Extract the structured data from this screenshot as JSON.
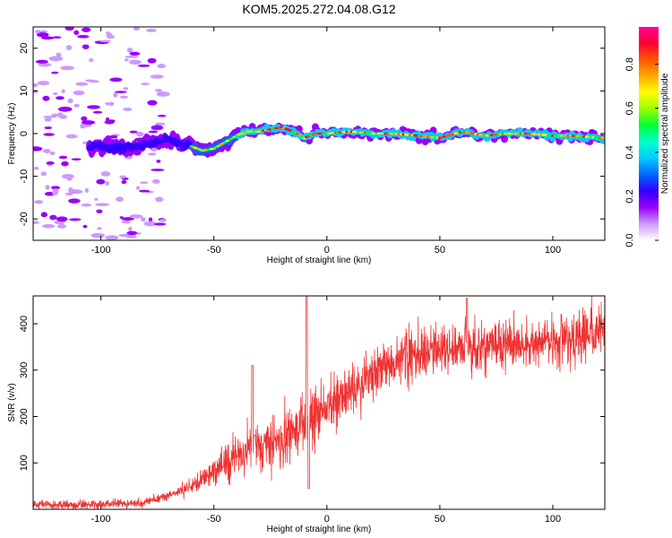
{
  "title": "KOM5.2025.272.04.08.G12",
  "chart_data": [
    {
      "type": "heatmap",
      "xlabel": "Height of straight line (km)",
      "ylabel": "Frequency (Hz)",
      "xlim": [
        -130,
        123
      ],
      "ylim": [
        -25,
        25
      ],
      "xticks": [
        -100,
        -50,
        0,
        50,
        100
      ],
      "yticks": [
        -20,
        -10,
        0,
        10,
        20
      ],
      "colorbar": {
        "label": "Normalized spectral amplitude",
        "range": [
          0,
          0.97
        ],
        "ticks": [
          0.0,
          0.2,
          0.4,
          0.6,
          0.8
        ],
        "colors": [
          "#ffffff",
          "#cc99ff",
          "#9900ff",
          "#3300ff",
          "#0066ff",
          "#00ccff",
          "#00ffcc",
          "#00ff33",
          "#99ff00",
          "#ffff00",
          "#ffaa00",
          "#ff5500",
          "#ff0033",
          "#ff0099"
        ]
      },
      "ridge": [
        {
          "x": -100,
          "f": -3.0
        },
        {
          "x": -90,
          "f": -3.5
        },
        {
          "x": -80,
          "f": -2.5
        },
        {
          "x": -70,
          "f": -1.5
        },
        {
          "x": -60,
          "f": -3.0
        },
        {
          "x": -55,
          "f": -4.0
        },
        {
          "x": -50,
          "f": -3.5
        },
        {
          "x": -45,
          "f": -2.0
        },
        {
          "x": -40,
          "f": -0.5
        },
        {
          "x": -35,
          "f": 0.5
        },
        {
          "x": -30,
          "f": 0.5
        },
        {
          "x": -25,
          "f": 1.0
        },
        {
          "x": -20,
          "f": 1.5
        },
        {
          "x": -15,
          "f": 0.5
        },
        {
          "x": -10,
          "f": -1.0
        },
        {
          "x": -5,
          "f": 0.0
        },
        {
          "x": 0,
          "f": 0.0
        },
        {
          "x": 10,
          "f": 0.5
        },
        {
          "x": 20,
          "f": 0.0
        },
        {
          "x": 30,
          "f": 0.0
        },
        {
          "x": 40,
          "f": -0.5
        },
        {
          "x": 50,
          "f": -1.0
        },
        {
          "x": 60,
          "f": 0.5
        },
        {
          "x": 70,
          "f": -0.5
        },
        {
          "x": 80,
          "f": 0.0
        },
        {
          "x": 90,
          "f": 0.0
        },
        {
          "x": 100,
          "f": -0.5
        },
        {
          "x": 110,
          "f": -0.5
        },
        {
          "x": 120,
          "f": -1.0
        }
      ],
      "noise_region": [
        -130,
        -72
      ]
    },
    {
      "type": "line",
      "xlabel": "Height of straight line (km)",
      "ylabel": "SNR (v/v)",
      "xlim": [
        -130,
        123
      ],
      "ylim": [
        0,
        460
      ],
      "xticks": [
        -100,
        -50,
        0,
        50,
        100
      ],
      "yticks": [
        100,
        200,
        300,
        400
      ],
      "line_color": "#ee3333",
      "trend": [
        {
          "x": -130,
          "y": 10
        },
        {
          "x": -100,
          "y": 10
        },
        {
          "x": -80,
          "y": 15
        },
        {
          "x": -70,
          "y": 30
        },
        {
          "x": -60,
          "y": 50
        },
        {
          "x": -50,
          "y": 80
        },
        {
          "x": -40,
          "y": 120
        },
        {
          "x": -35,
          "y": 140
        },
        {
          "x": -30,
          "y": 140
        },
        {
          "x": -20,
          "y": 150
        },
        {
          "x": -10,
          "y": 180
        },
        {
          "x": -5,
          "y": 200
        },
        {
          "x": 0,
          "y": 220
        },
        {
          "x": 10,
          "y": 250
        },
        {
          "x": 20,
          "y": 290
        },
        {
          "x": 30,
          "y": 320
        },
        {
          "x": 40,
          "y": 340
        },
        {
          "x": 50,
          "y": 345
        },
        {
          "x": 60,
          "y": 350
        },
        {
          "x": 80,
          "y": 355
        },
        {
          "x": 100,
          "y": 360
        },
        {
          "x": 123,
          "y": 380
        }
      ],
      "spikes": [
        {
          "x": -33,
          "y": 310
        },
        {
          "x": -32,
          "y": 160
        },
        {
          "x": -9,
          "y": 460
        },
        {
          "x": -8,
          "y": 45
        },
        {
          "x": 62,
          "y": 455
        }
      ]
    }
  ]
}
